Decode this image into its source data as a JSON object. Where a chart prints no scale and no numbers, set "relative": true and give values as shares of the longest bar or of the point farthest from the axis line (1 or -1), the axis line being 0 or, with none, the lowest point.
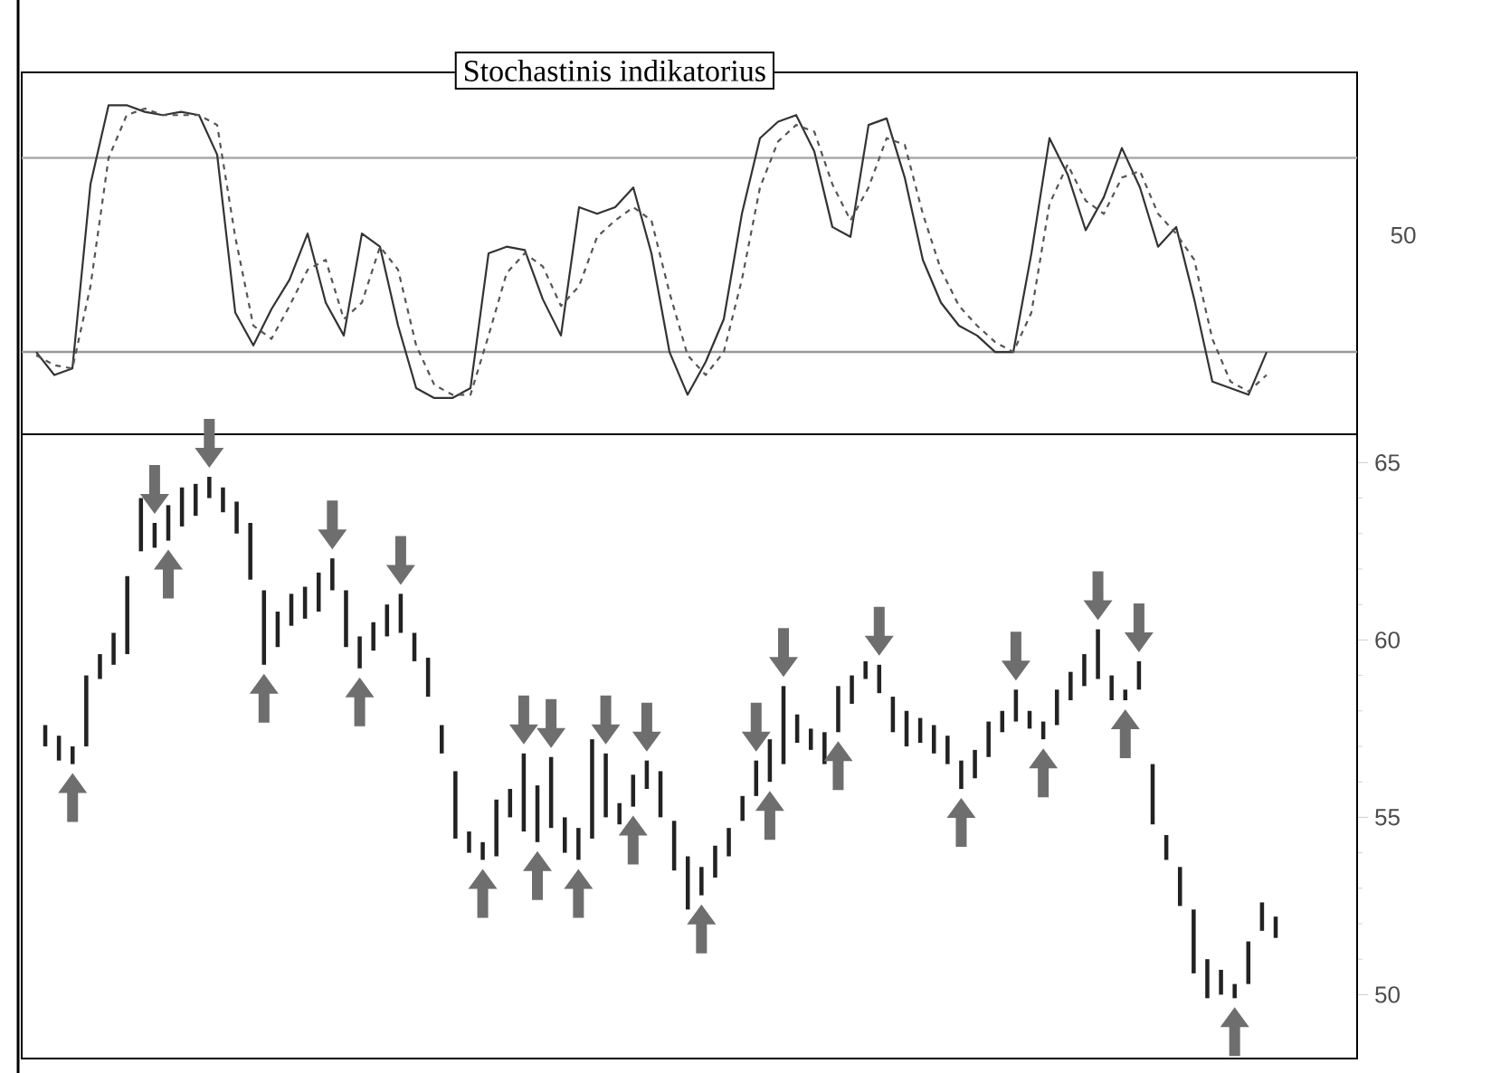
{
  "chart_data": [
    {
      "type": "line",
      "title": "Stochastinis indikatorius",
      "relative": true,
      "categories": [
        null,
        null,
        null,
        null,
        null,
        null,
        null,
        null,
        null,
        null,
        null,
        null,
        null,
        null,
        null,
        null,
        null,
        null,
        null,
        null,
        null,
        null,
        null,
        null,
        null,
        null,
        null,
        null,
        null,
        null,
        null,
        null,
        null,
        null,
        null,
        null,
        null,
        null,
        null,
        null,
        null,
        null,
        null,
        null,
        null,
        null,
        null,
        null,
        null,
        null,
        null,
        null,
        null,
        null,
        null,
        null,
        null,
        null,
        null,
        null,
        null,
        null,
        null,
        null,
        null,
        null,
        null,
        null,
        null
      ],
      "series": [
        {
          "color": "#333333",
          "line_style": "solid",
          "values": [
            0.25,
            0.18,
            0.2,
            0.76,
            1,
            1,
            0.98,
            0.97,
            0.98,
            0.97,
            0.85,
            0.37,
            0.27,
            0.38,
            0.47,
            0.61,
            0.4,
            0.3,
            0.61,
            0.57,
            0.33,
            0.14,
            0.11,
            0.11,
            0.14,
            0.55,
            0.57,
            0.56,
            0.41,
            0.3,
            0.69,
            0.67,
            0.69,
            0.75,
            0.55,
            0.25,
            0.12,
            0.22,
            0.35,
            0.67,
            0.9,
            0.95,
            0.97,
            0.86,
            0.63,
            0.6,
            0.94,
            0.96,
            0.78,
            0.53,
            0.4,
            0.33,
            0.3,
            0.25,
            0.25,
            0.55,
            0.9,
            0.79,
            0.62,
            0.72,
            0.87,
            0.75,
            0.57,
            0.63,
            0.41,
            0.16,
            0.14,
            0.12,
            0.25
          ]
        },
        {
          "color": "#555555",
          "line_style": "dashed",
          "values": [
            0.24,
            0.21,
            0.2,
            0.45,
            0.84,
            0.97,
            0.99,
            0.97,
            0.97,
            0.97,
            0.94,
            0.6,
            0.33,
            0.29,
            0.39,
            0.5,
            0.53,
            0.35,
            0.4,
            0.57,
            0.5,
            0.27,
            0.15,
            0.12,
            0.12,
            0.3,
            0.49,
            0.55,
            0.51,
            0.39,
            0.45,
            0.6,
            0.65,
            0.69,
            0.65,
            0.43,
            0.24,
            0.18,
            0.25,
            0.47,
            0.75,
            0.89,
            0.94,
            0.92,
            0.76,
            0.65,
            0.75,
            0.9,
            0.88,
            0.67,
            0.5,
            0.39,
            0.33,
            0.28,
            0.25,
            0.37,
            0.7,
            0.82,
            0.71,
            0.67,
            0.78,
            0.8,
            0.67,
            0.61,
            0.53,
            0.29,
            0.16,
            0.13,
            0.18
          ]
        }
      ],
      "ref_lines": [
        {
          "axis": "y",
          "value": 0.25,
          "color": "#999999"
        },
        {
          "axis": "y",
          "value": 0.84,
          "color": "#aaaaaa"
        }
      ],
      "annotations": [
        "50"
      ],
      "tick_labels": false
    },
    {
      "type": "bar",
      "categories": [
        null,
        null,
        null,
        null,
        null,
        null,
        null,
        null,
        null,
        null,
        null,
        null,
        null,
        null,
        null,
        null,
        null,
        null,
        null,
        null,
        null,
        null,
        null,
        null,
        null,
        null,
        null,
        null,
        null,
        null,
        null,
        null,
        null,
        null,
        null,
        null,
        null,
        null,
        null,
        null,
        null,
        null,
        null,
        null,
        null,
        null,
        null,
        null,
        null,
        null,
        null,
        null,
        null,
        null,
        null,
        null,
        null,
        null,
        null,
        null,
        null,
        null,
        null,
        null,
        null,
        null,
        null,
        null,
        null,
        null,
        null,
        null,
        null,
        null,
        null,
        null,
        null,
        null,
        null,
        null,
        null,
        null,
        null,
        null,
        null,
        null,
        null,
        null,
        null,
        null,
        null
      ],
      "values": [
        0.6,
        0.7,
        0.5,
        2.0,
        0.7,
        0.9,
        2.2,
        1.5,
        0.7,
        1.0,
        1.1,
        0.9,
        0.6,
        0.7,
        0.9,
        1.6,
        2.1,
        1.0,
        0.9,
        0.9,
        1.1,
        0.9,
        1.6,
        0.9,
        0.8,
        0.9,
        1.1,
        0.8,
        1.1,
        0.8,
        1.9,
        0.6,
        0.5,
        1.6,
        0.8,
        2.2,
        1.6,
        2.0,
        1.0,
        0.9,
        2.8,
        1.8,
        0.6,
        0.9,
        0.8,
        1.3,
        1.4,
        1.5,
        0.8,
        0.9,
        0.8,
        0.7,
        1.0,
        1.2,
        2.2,
        0.8,
        0.6,
        0.9,
        1.3,
        0.8,
        0.5,
        0.8,
        1.0,
        1.0,
        0.7,
        0.8,
        0.8,
        0.8,
        0.8,
        1.0,
        0.6,
        0.9,
        0.5,
        0.5,
        1.0,
        0.8,
        0.9,
        1.4,
        0.7,
        0.3,
        0.8,
        1.7,
        0.7,
        1.1,
        1.8,
        1.1,
        0.7,
        0.4,
        1.2,
        0.8,
        0.6
      ],
      "base": [
        57.0,
        56.6,
        56.5,
        57.0,
        58.9,
        59.3,
        59.6,
        62.5,
        62.6,
        62.8,
        63.2,
        63.5,
        64.0,
        63.6,
        63.0,
        61.7,
        59.3,
        59.8,
        60.4,
        60.6,
        60.8,
        61.4,
        59.8,
        59.2,
        59.7,
        60.1,
        60.2,
        59.4,
        58.4,
        56.8,
        54.4,
        54.0,
        53.8,
        53.9,
        55.0,
        54.6,
        54.3,
        54.7,
        54.0,
        53.8,
        54.4,
        55.0,
        54.8,
        55.3,
        55.8,
        55.0,
        53.5,
        52.4,
        52.8,
        53.3,
        53.9,
        54.9,
        55.6,
        56.0,
        56.5,
        57.1,
        56.9,
        56.5,
        57.4,
        58.2,
        58.9,
        58.5,
        57.4,
        57.0,
        57.1,
        56.8,
        56.5,
        55.8,
        56.1,
        56.7,
        57.4,
        57.7,
        57.5,
        57.2,
        57.6,
        58.3,
        58.7,
        58.9,
        58.3,
        58.3,
        58.6,
        54.8,
        53.8,
        52.5,
        50.6,
        49.9,
        50.0,
        49.9,
        50.3,
        51.8,
        51.6
      ],
      "color": "#222222",
      "ylim": [
        48.2,
        65.8
      ],
      "yticks": [
        50,
        55,
        60,
        65
      ],
      "tick_labels": "y"
    }
  ]
}
